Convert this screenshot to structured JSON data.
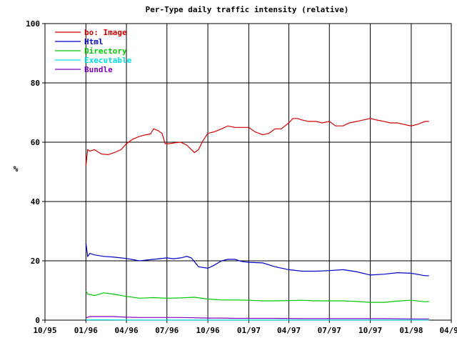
{
  "chart_data": {
    "type": "line",
    "title": "Per-Type daily traffic intensity (relative)",
    "xlabel": "",
    "ylabel": "%",
    "ylim": [
      0,
      100
    ],
    "yticks": [
      0,
      20,
      40,
      60,
      80,
      100
    ],
    "xlim": [
      "1995-10-01",
      "1998-04-01"
    ],
    "xticks": [
      "10/95",
      "01/96",
      "04/96",
      "07/96",
      "10/96",
      "01/97",
      "04/97",
      "07/97",
      "10/97",
      "01/98",
      "04/98"
    ],
    "xtick_dates": [
      "1995-10-01",
      "1996-01-01",
      "1996-04-01",
      "1996-07-01",
      "1996-10-01",
      "1997-01-01",
      "1997-04-01",
      "1997-07-01",
      "1997-10-01",
      "1998-01-01",
      "1998-04-01"
    ],
    "grid": true,
    "legend_position": "top-left",
    "series": [
      {
        "name": "bo: Image",
        "color": "#d40000",
        "x": [
          "1996-01-01",
          "1996-01-05",
          "1996-01-10",
          "1996-01-20",
          "1996-02-05",
          "1996-02-20",
          "1996-03-05",
          "1996-03-20",
          "1996-04-01",
          "1996-04-15",
          "1996-05-01",
          "1996-05-15",
          "1996-05-25",
          "1996-06-01",
          "1996-06-10",
          "1996-06-20",
          "1996-06-27",
          "1996-07-05",
          "1996-07-20",
          "1996-08-01",
          "1996-08-15",
          "1996-08-25",
          "1996-09-01",
          "1996-09-10",
          "1996-09-20",
          "1996-10-01",
          "1996-10-15",
          "1996-11-01",
          "1996-11-15",
          "1996-12-01",
          "1996-12-15",
          "1997-01-01",
          "1997-01-15",
          "1997-02-01",
          "1997-02-15",
          "1997-03-01",
          "1997-03-15",
          "1997-04-01",
          "1997-04-10",
          "1997-04-20",
          "1997-05-01",
          "1997-05-15",
          "1997-06-01",
          "1997-06-15",
          "1997-07-01",
          "1997-07-15",
          "1997-08-01",
          "1997-08-15",
          "1997-09-01",
          "1997-09-15",
          "1997-10-01",
          "1997-10-15",
          "1997-11-01",
          "1997-11-15",
          "1997-12-01",
          "1997-12-15",
          "1998-01-01",
          "1998-01-15",
          "1998-02-01",
          "1998-02-10"
        ],
        "values": [
          52,
          57.5,
          57,
          57.5,
          56,
          55.8,
          56.5,
          57.5,
          59.5,
          61,
          62,
          62.5,
          62.8,
          64.5,
          64,
          63,
          59.5,
          59.5,
          59.8,
          60,
          59,
          57.5,
          56.5,
          57.5,
          60.5,
          63,
          63.5,
          64.5,
          65.5,
          65,
          65,
          65,
          63.5,
          62.5,
          63,
          64.5,
          64.5,
          66.5,
          68,
          68,
          67.5,
          67,
          67,
          66.5,
          67,
          65.5,
          65.5,
          66.5,
          67,
          67.5,
          68,
          67.5,
          67,
          66.5,
          66.5,
          66,
          65.5,
          66,
          67,
          67
        ]
      },
      {
        "name": "Html",
        "color": "#0000c8",
        "x": [
          "1996-01-01",
          "1996-01-05",
          "1996-01-10",
          "1996-01-20",
          "1996-02-10",
          "1996-03-01",
          "1996-04-01",
          "1996-05-01",
          "1996-06-01",
          "1996-07-01",
          "1996-07-15",
          "1996-08-01",
          "1996-08-15",
          "1996-08-25",
          "1996-09-10",
          "1996-10-01",
          "1996-10-15",
          "1996-11-01",
          "1996-11-15",
          "1996-12-01",
          "1996-12-15",
          "1997-01-01",
          "1997-02-01",
          "1997-03-01",
          "1997-04-01",
          "1997-05-01",
          "1997-06-01",
          "1997-07-01",
          "1997-08-01",
          "1997-09-01",
          "1997-10-01",
          "1997-11-01",
          "1997-12-01",
          "1998-01-01",
          "1998-02-01",
          "1998-02-10"
        ],
        "values": [
          26,
          21.5,
          22.5,
          22,
          21.5,
          21.3,
          20.8,
          20,
          20.5,
          21,
          20.7,
          21,
          21.5,
          21,
          18,
          17.5,
          18.5,
          20,
          20.5,
          20.5,
          19.8,
          19.5,
          19.3,
          18,
          17,
          16.5,
          16.5,
          16.7,
          17,
          16.3,
          15.2,
          15.5,
          16,
          15.8,
          15,
          15
        ]
      },
      {
        "name": "Directory",
        "color": "#00c800",
        "x": [
          "1996-01-01",
          "1996-01-05",
          "1996-01-20",
          "1996-02-10",
          "1996-03-01",
          "1996-04-01",
          "1996-05-01",
          "1996-06-01",
          "1996-07-01",
          "1996-08-01",
          "1996-09-01",
          "1996-10-01",
          "1996-11-01",
          "1996-12-01",
          "1997-01-01",
          "1997-02-01",
          "1997-03-01",
          "1997-04-01",
          "1997-05-01",
          "1997-06-01",
          "1997-07-01",
          "1997-08-01",
          "1997-09-01",
          "1997-10-01",
          "1997-11-01",
          "1997-12-01",
          "1998-01-01",
          "1998-02-01",
          "1998-02-10"
        ],
        "values": [
          9.8,
          8.8,
          8.3,
          9.2,
          8.8,
          8,
          7.4,
          7.6,
          7.4,
          7.5,
          7.7,
          7.1,
          6.8,
          6.8,
          6.7,
          6.5,
          6.5,
          6.6,
          6.7,
          6.5,
          6.5,
          6.5,
          6.3,
          6.0,
          6.0,
          6.4,
          6.7,
          6.2,
          6.3
        ]
      },
      {
        "name": "Executable",
        "color": "#00e0e0",
        "x": [
          "1996-01-01",
          "1996-02-01",
          "1996-03-01",
          "1996-04-01",
          "1996-06-01",
          "1996-08-01",
          "1996-10-01",
          "1997-01-01",
          "1997-04-01",
          "1997-07-01",
          "1997-10-01",
          "1998-01-01",
          "1998-02-10"
        ],
        "values": [
          0.1,
          0.1,
          0.1,
          0.05,
          0.05,
          0.05,
          0.05,
          0.05,
          0.05,
          0.05,
          0.05,
          0.05,
          0.05
        ]
      },
      {
        "name": "Bundle",
        "color": "#8000c0",
        "x": [
          "1996-01-01",
          "1996-01-10",
          "1996-02-01",
          "1996-03-01",
          "1996-04-01",
          "1996-05-01",
          "1996-06-01",
          "1996-07-01",
          "1996-08-01",
          "1996-09-01",
          "1996-10-01",
          "1996-11-01",
          "1996-12-01",
          "1997-01-01",
          "1997-03-01",
          "1997-05-01",
          "1997-07-01",
          "1997-09-01",
          "1997-11-01",
          "1998-01-01",
          "1998-02-10"
        ],
        "values": [
          0.8,
          1.2,
          1.2,
          1.2,
          1.0,
          0.9,
          0.9,
          0.9,
          0.9,
          0.8,
          0.7,
          0.7,
          0.6,
          0.6,
          0.6,
          0.5,
          0.5,
          0.5,
          0.5,
          0.4,
          0.4
        ]
      }
    ]
  }
}
